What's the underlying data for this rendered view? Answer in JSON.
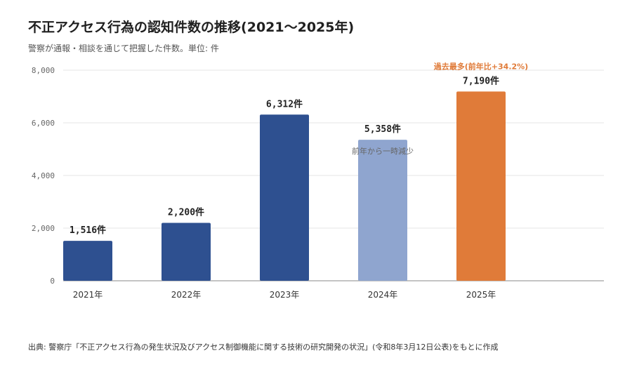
{
  "header": {
    "title": "不正アクセス行為の認知件数の推移(2021〜2025年)",
    "subtitle": "警察が通報・相談を通じて把握した件数。単位: 件"
  },
  "footer": {
    "source": "出典: 警察庁「不正アクセス行為の発生状況及びアクセス制御機能に関する技術の研究開発の状況」(令和8年3月12日公表)をもとに作成"
  },
  "colors": {
    "bar_default": "#2e5090",
    "bar_2024": "#8fa5cf",
    "bar_2025": "#e07b39",
    "grid": "#e6e6e6",
    "axis": "#888888"
  },
  "chart_data": {
    "type": "bar",
    "categories": [
      "2021年",
      "2022年",
      "2023年",
      "2024年",
      "2025年"
    ],
    "values": [
      1516,
      2200,
      6312,
      5358,
      7190
    ],
    "data_labels": [
      "1,516件",
      "2,200件",
      "6,312件",
      "5,358件",
      "7,190件"
    ],
    "ylim": [
      0,
      8000
    ],
    "yticks": [
      0,
      2000,
      4000,
      6000,
      8000
    ],
    "ytick_labels": [
      "0",
      "2,000",
      "4,000",
      "6,000",
      "8,000"
    ],
    "grid": true,
    "annotations": [
      {
        "category": "2024年",
        "text": "前年から一時減少"
      },
      {
        "category": "2025年",
        "text": "過去最多(前年比+34.2%)"
      }
    ]
  }
}
